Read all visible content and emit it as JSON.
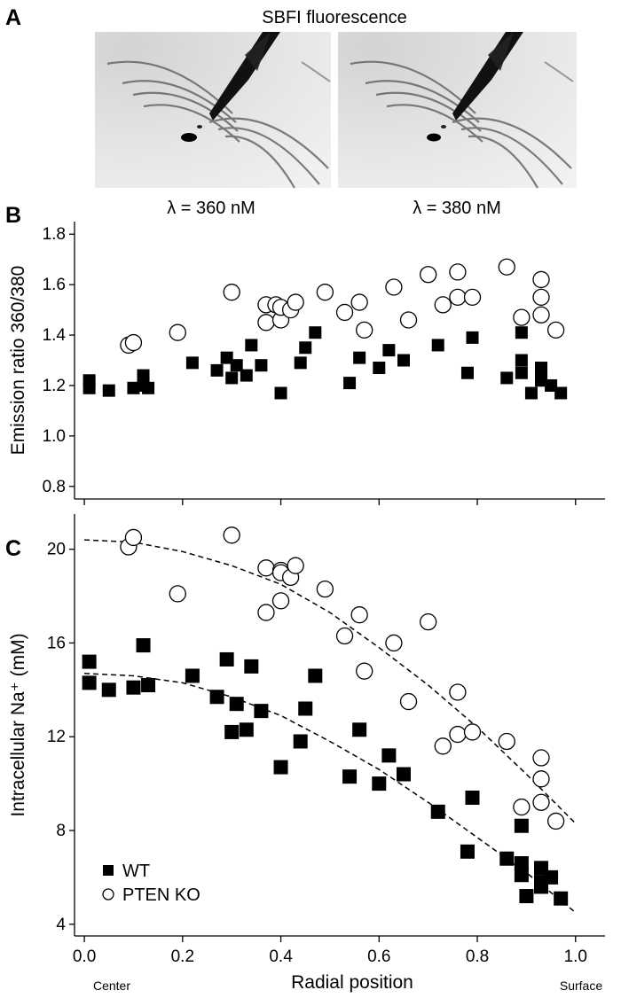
{
  "panel_a": {
    "letter": "A",
    "title": "SBFI fluorescence",
    "images": [
      {
        "caption": "λ = 360 nM"
      },
      {
        "caption": "λ = 380 nM"
      }
    ]
  },
  "panel_b": {
    "letter": "B"
  },
  "panel_c": {
    "letter": "C"
  },
  "x_extremes": {
    "left": "Center",
    "right": "Surface"
  },
  "chart_data": [
    {
      "panel": "B",
      "type": "scatter",
      "title": "",
      "xlabel": "",
      "ylabel": "Emission ratio 360/380",
      "xlim": [
        -0.02,
        1.06
      ],
      "ylim": [
        0.75,
        1.85
      ],
      "xticks": [
        0.0,
        0.2,
        0.4,
        0.6,
        0.8,
        1.0
      ],
      "yticks": [
        0.8,
        1.0,
        1.2,
        1.4,
        1.6,
        1.8
      ],
      "ytick_labels": [
        "0.8",
        "1.0",
        "1.2",
        "1.4",
        "1.6",
        "1.8"
      ],
      "grid": false,
      "series": [
        {
          "name": "WT",
          "marker": "filled-square",
          "color": "#000000",
          "x": [
            0.01,
            0.01,
            0.05,
            0.1,
            0.12,
            0.13,
            0.12,
            0.22,
            0.27,
            0.29,
            0.3,
            0.31,
            0.33,
            0.34,
            0.36,
            0.4,
            0.44,
            0.45,
            0.47,
            0.54,
            0.56,
            0.6,
            0.62,
            0.65,
            0.72,
            0.78,
            0.79,
            0.86,
            0.89,
            0.89,
            0.89,
            0.91,
            0.93,
            0.93,
            0.93,
            0.95,
            0.97
          ],
          "y": [
            1.22,
            1.19,
            1.18,
            1.19,
            1.24,
            1.19,
            1.2,
            1.29,
            1.26,
            1.31,
            1.23,
            1.28,
            1.24,
            1.36,
            1.28,
            1.17,
            1.29,
            1.35,
            1.41,
            1.21,
            1.31,
            1.27,
            1.34,
            1.3,
            1.36,
            1.25,
            1.39,
            1.23,
            1.41,
            1.25,
            1.3,
            1.17,
            1.27,
            1.25,
            1.22,
            1.2,
            1.17
          ]
        },
        {
          "name": "PTEN KO",
          "marker": "open-circle",
          "color": "#000000",
          "x": [
            0.09,
            0.1,
            0.19,
            0.3,
            0.37,
            0.37,
            0.39,
            0.4,
            0.4,
            0.42,
            0.43,
            0.49,
            0.53,
            0.56,
            0.57,
            0.63,
            0.66,
            0.7,
            0.73,
            0.76,
            0.76,
            0.79,
            0.86,
            0.89,
            0.93,
            0.93,
            0.93,
            0.96
          ],
          "y": [
            1.36,
            1.37,
            1.41,
            1.57,
            1.52,
            1.45,
            1.52,
            1.46,
            1.51,
            1.5,
            1.53,
            1.57,
            1.49,
            1.53,
            1.42,
            1.59,
            1.46,
            1.64,
            1.52,
            1.65,
            1.55,
            1.55,
            1.67,
            1.47,
            1.62,
            1.55,
            1.48,
            1.42
          ]
        }
      ]
    },
    {
      "panel": "C",
      "type": "scatter",
      "title": "",
      "xlabel": "Radial position",
      "ylabel": "Intracellular Na⁺ (mM)",
      "xlim": [
        -0.02,
        1.06
      ],
      "ylim": [
        3.5,
        21.5
      ],
      "xticks": [
        0.0,
        0.2,
        0.4,
        0.6,
        0.8,
        1.0
      ],
      "xtick_labels": [
        "0.0",
        "0.2",
        "0.4",
        "0.6",
        "0.8",
        "1.0"
      ],
      "yticks": [
        4,
        8,
        12,
        16,
        20
      ],
      "ytick_labels": [
        "4",
        "8",
        "12",
        "16",
        "20"
      ],
      "grid": false,
      "legend_position": "bottom-left",
      "series": [
        {
          "name": "WT",
          "marker": "filled-square",
          "color": "#000000",
          "x": [
            0.01,
            0.01,
            0.05,
            0.1,
            0.12,
            0.13,
            0.22,
            0.27,
            0.29,
            0.3,
            0.31,
            0.33,
            0.34,
            0.36,
            0.4,
            0.44,
            0.45,
            0.47,
            0.54,
            0.56,
            0.6,
            0.62,
            0.65,
            0.72,
            0.78,
            0.79,
            0.86,
            0.89,
            0.89,
            0.89,
            0.9,
            0.93,
            0.93,
            0.93,
            0.95,
            0.97
          ],
          "y": [
            15.2,
            14.3,
            14.0,
            14.1,
            15.9,
            14.2,
            14.6,
            13.7,
            15.3,
            12.2,
            13.4,
            12.3,
            15.0,
            13.1,
            10.7,
            11.8,
            13.2,
            14.6,
            10.3,
            12.3,
            10.0,
            11.2,
            10.4,
            8.8,
            7.1,
            9.4,
            6.8,
            8.2,
            6.6,
            6.1,
            5.2,
            6.4,
            5.8,
            5.6,
            6.0,
            5.1
          ]
        },
        {
          "name": "PTEN KO",
          "marker": "open-circle",
          "color": "#000000",
          "x": [
            0.09,
            0.1,
            0.19,
            0.3,
            0.37,
            0.37,
            0.4,
            0.4,
            0.4,
            0.42,
            0.43,
            0.49,
            0.53,
            0.56,
            0.57,
            0.63,
            0.66,
            0.7,
            0.73,
            0.76,
            0.76,
            0.79,
            0.86,
            0.89,
            0.93,
            0.93,
            0.93,
            0.96
          ],
          "y": [
            20.1,
            20.5,
            18.1,
            20.6,
            19.2,
            17.3,
            19.1,
            17.8,
            19.0,
            18.8,
            19.3,
            18.3,
            16.3,
            17.2,
            14.8,
            16.0,
            13.5,
            16.9,
            11.6,
            13.9,
            12.1,
            12.2,
            11.8,
            9.0,
            11.1,
            10.2,
            9.2,
            8.4
          ]
        }
      ],
      "fits": [
        {
          "series": "WT",
          "style": "dashed",
          "x": [
            0.0,
            0.1,
            0.2,
            0.3,
            0.4,
            0.5,
            0.6,
            0.7,
            0.8,
            0.9,
            1.0
          ],
          "y": [
            14.7,
            14.6,
            14.3,
            13.7,
            12.9,
            11.8,
            10.6,
            9.2,
            7.7,
            6.2,
            4.5
          ]
        },
        {
          "series": "PTEN KO",
          "style": "dashed",
          "x": [
            0.0,
            0.1,
            0.2,
            0.3,
            0.4,
            0.5,
            0.6,
            0.7,
            0.8,
            0.9,
            1.0
          ],
          "y": [
            20.4,
            20.3,
            19.9,
            19.3,
            18.5,
            17.3,
            15.8,
            14.2,
            12.4,
            10.4,
            8.3
          ]
        }
      ]
    }
  ]
}
